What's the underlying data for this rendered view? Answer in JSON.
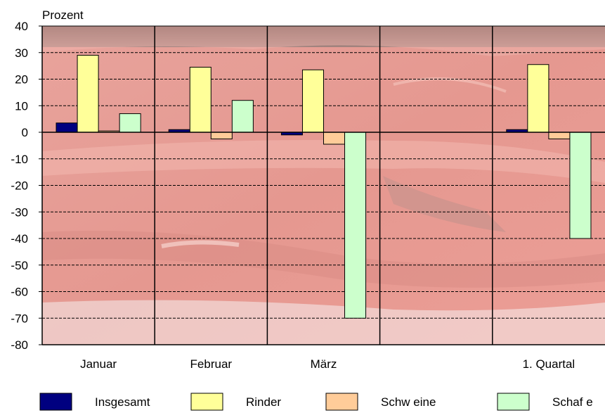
{
  "chart_data": {
    "type": "bar",
    "ylabel": "Prozent",
    "ylim": [
      -80,
      40
    ],
    "yticks": [
      "40",
      "30",
      "20",
      "10",
      "0",
      "-10",
      "-20",
      "-30",
      "-40",
      "-50",
      "-60",
      "-70",
      "-80"
    ],
    "categories": [
      "Januar",
      "Februar",
      "März",
      "",
      "1. Quartal"
    ],
    "grid": "dashed horizontal, solid vertical separators",
    "legend_position": "bottom",
    "background": "photo of raw red meat",
    "series": [
      {
        "name": "Insgesamt",
        "color": "#000080",
        "values": [
          3.5,
          1.0,
          -1.0,
          null,
          1.0
        ]
      },
      {
        "name": "Rinder",
        "color": "#ffff99",
        "values": [
          29,
          24.5,
          23.5,
          null,
          25.5
        ]
      },
      {
        "name": "Schw eine",
        "color": "#ffcc99",
        "values": [
          0.5,
          -2.5,
          -4.5,
          null,
          -2.5
        ]
      },
      {
        "name": "Schaf e",
        "color": "#ccffcc",
        "values": [
          7,
          12,
          -70,
          null,
          -40
        ]
      }
    ]
  }
}
